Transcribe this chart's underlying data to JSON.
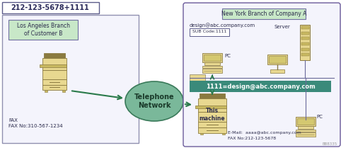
{
  "fig_width": 4.82,
  "fig_height": 2.09,
  "dpi": 100,
  "bg_color": "#ffffff",
  "title_text": "212-123-5678+1111",
  "title_border_color": "#5c5c8a",
  "left_label": "Los Angeles Branch\nof Customer B",
  "left_label_bg": "#c8e8c8",
  "fax_label": "FAX\nFAX No:310-567-1234",
  "network_label": "Telephone\nNetwork",
  "network_fill": "#7ab89a",
  "network_border": "#3a7a5a",
  "right_box_border": "#6a5a9a",
  "ny_label": "New York Branch of Company A",
  "ny_bg": "#c8e8c8",
  "design_email": "design@abc.company.com",
  "sub_code_label": "SUB Code:1111",
  "sub_code_bg": "#ffffff",
  "sub_code_border": "#5c5c8a",
  "pc_label1": "PC",
  "server_label": "Server",
  "pc_label2": "PC",
  "email_bar_text": "1111=design@abc.company.com",
  "email_bar_fill": "#3a8a7a",
  "email_bar_text_color": "#ffffff",
  "this_machine_label": "This\nmachine",
  "bottom_email": "E-Mail:  aaaa@abc.company.com",
  "bottom_fax": "FAX No:212-123-5678",
  "arrow_color": "#2a7a4a",
  "fax_fill": "#e8d890",
  "fax_border": "#8a7a40",
  "fax_dark": "#c8b860",
  "fax_top": "#b8a040",
  "pc_fill": "#e8d890",
  "pc_border": "#8a7a40",
  "watermark": "BB8335",
  "left_box_bg": "#f4f4fc",
  "right_box_bg": "#f4f4fc",
  "line_color": "#6a6a9a"
}
